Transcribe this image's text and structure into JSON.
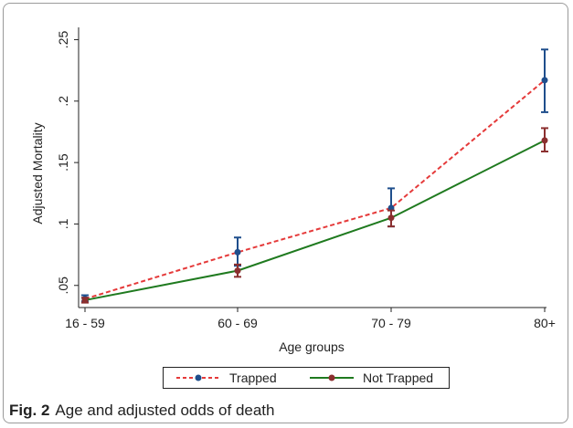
{
  "chart_data": {
    "type": "line",
    "categories": [
      "16 - 59",
      "60 - 69",
      "70 -  79",
      "80+"
    ],
    "series": [
      {
        "name": "Trapped",
        "color": "#e53a3a",
        "marker_color": "#1f4e8c",
        "line_style": "dashed",
        "values": [
          0.039,
          0.077,
          0.113,
          0.217
        ],
        "ci_low": [
          0.037,
          0.066,
          0.098,
          0.191
        ],
        "ci_high": [
          0.042,
          0.089,
          0.129,
          0.242
        ]
      },
      {
        "name": "Not Trapped",
        "color": "#1f7a1f",
        "marker_color": "#8b2f2f",
        "line_style": "solid",
        "values": [
          0.038,
          0.062,
          0.105,
          0.168
        ],
        "ci_low": [
          0.036,
          0.057,
          0.098,
          0.159
        ],
        "ci_high": [
          0.04,
          0.067,
          0.111,
          0.178
        ]
      }
    ],
    "xlabel": "Age groups",
    "ylabel": "Adjusted Mortality",
    "ylim": [
      0.032,
      0.26
    ],
    "yticks": [
      0.05,
      0.1,
      0.15,
      0.2,
      0.25
    ],
    "ytick_labels": [
      ".05",
      ".1",
      ".15",
      ".2",
      ".25"
    ],
    "legend_position": "bottom",
    "grid": false
  },
  "caption": {
    "label": "Fig. 2",
    "text": "Age and adjusted odds of death"
  }
}
